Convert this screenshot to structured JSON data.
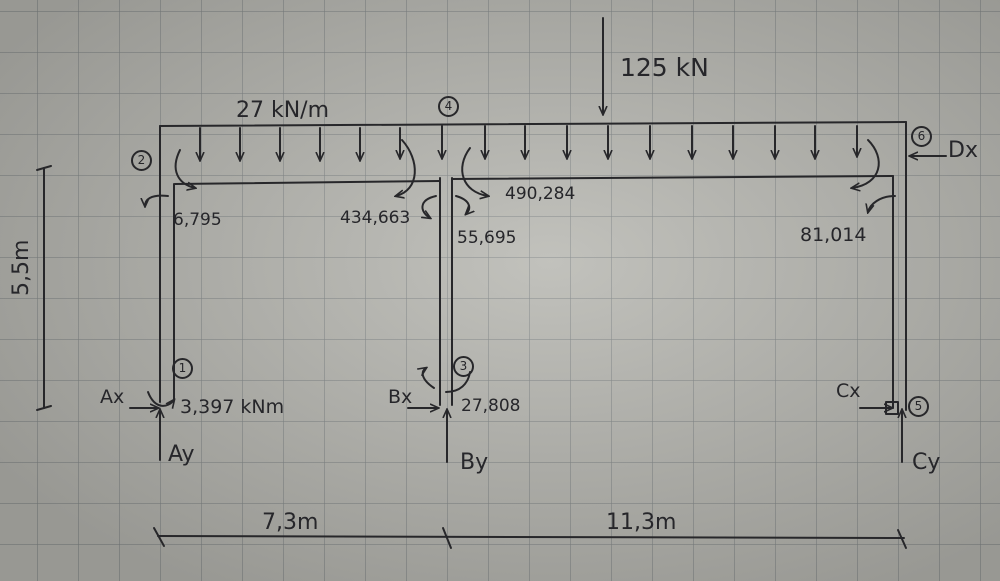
{
  "loads": {
    "distributed": "27 kN/m",
    "point": "125 kN"
  },
  "nodes": [
    "1",
    "2",
    "3",
    "4",
    "5",
    "6"
  ],
  "reactions": {
    "ax": "Ax",
    "ay": "Ay",
    "bx": "Bx",
    "by": "By",
    "cx": "Cx",
    "cy": "Cy",
    "dx": "Dx"
  },
  "moments": {
    "m_node1": "3,397 kNm",
    "m_node3": "27,808",
    "m_node2": "6,795",
    "m_mid_left": "434,663",
    "m_mid_right": "490,284",
    "m_mid_down": "55,695",
    "m_right": "81,014"
  },
  "dimensions": {
    "height": "5,5m",
    "span_left": "7,3m",
    "span_right": "11,3m"
  }
}
